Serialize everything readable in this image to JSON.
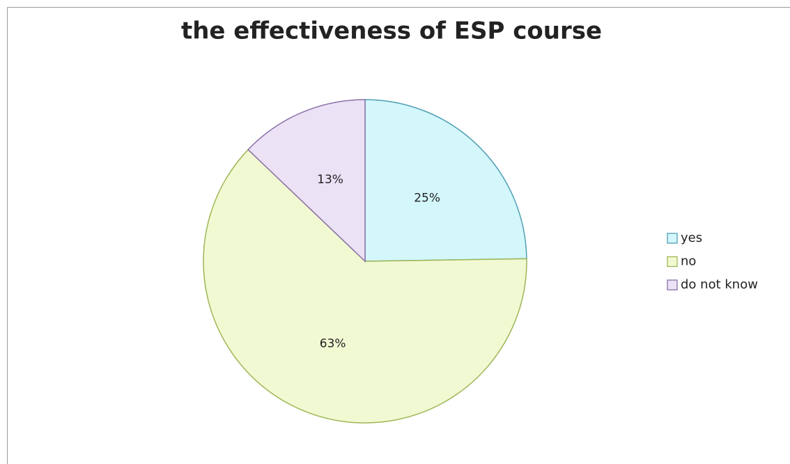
{
  "chart_data": {
    "type": "pie",
    "title": "the effectiveness of ESP course",
    "categories": [
      "yes",
      "no",
      "do not know"
    ],
    "values": [
      25,
      63,
      13
    ],
    "value_labels": [
      "25%",
      "63%",
      "13%"
    ],
    "colors": [
      "#d4f7fb",
      "#f1f9d2",
      "#ece2f6"
    ],
    "edge_colors": [
      "#4f9fb5",
      "#9cb655",
      "#8b70a8"
    ],
    "legend": "right"
  }
}
